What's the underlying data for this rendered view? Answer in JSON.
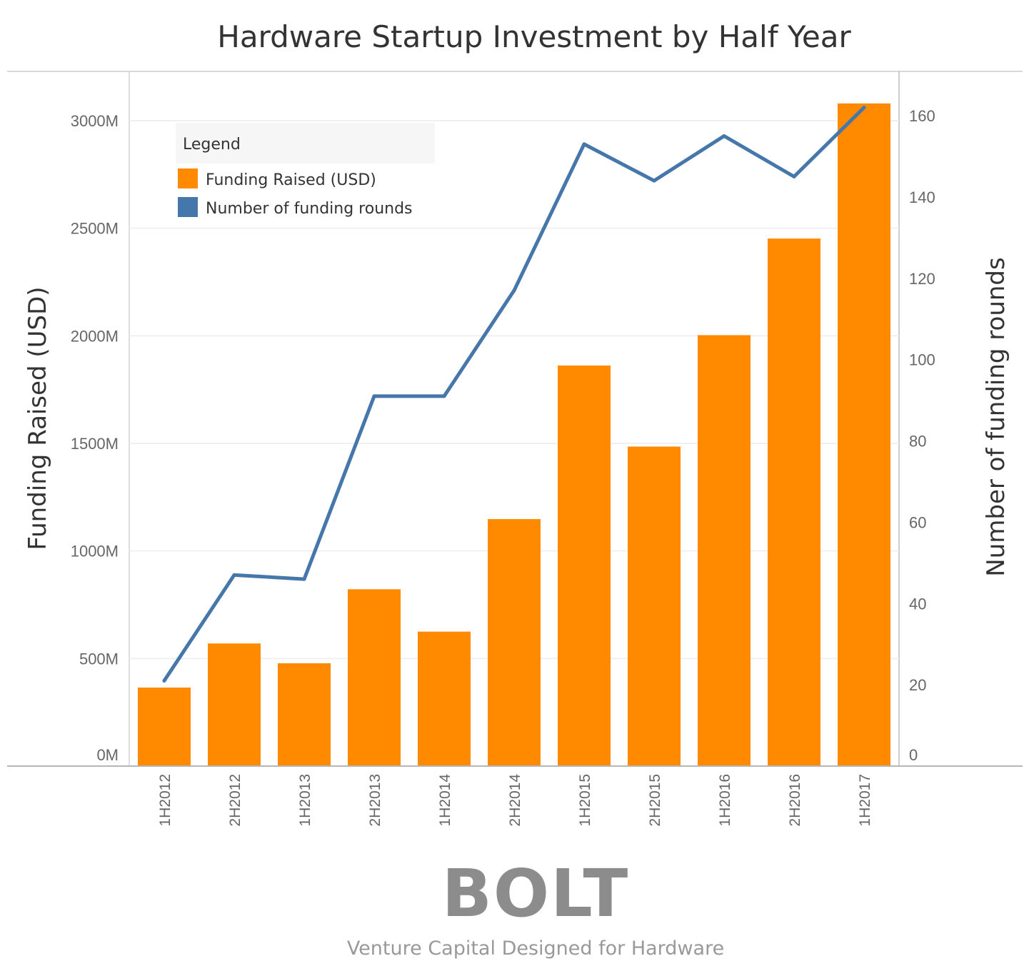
{
  "chart_data": {
    "type": "bar",
    "title": "Hardware Startup Investment by Half Year",
    "categories": [
      "1H2012",
      "2H2012",
      "1H2013",
      "2H2013",
      "1H2014",
      "2H2014",
      "1H2015",
      "2H2015",
      "1H2016",
      "2H2016",
      "1H2017"
    ],
    "series": [
      {
        "name": "Funding Raised (USD)",
        "type": "bar",
        "axis": "left",
        "values": [
          365,
          570,
          478,
          822,
          625,
          1148,
          1862,
          1485,
          2003,
          2452,
          3080
        ]
      },
      {
        "name": "Number of funding rounds",
        "type": "line",
        "axis": "right",
        "values": [
          21,
          47,
          46,
          91,
          91,
          117,
          153,
          144,
          155,
          145,
          162
        ]
      }
    ],
    "left_axis": {
      "label": "Funding Raised (USD)",
      "range": [
        0,
        3200
      ],
      "ticks": [
        0,
        500,
        1000,
        1500,
        2000,
        2500,
        3000
      ],
      "tick_labels": [
        "0M",
        "500M",
        "1000M",
        "1500M",
        "2000M",
        "2500M",
        "3000M"
      ]
    },
    "right_axis": {
      "label": "Number of funding rounds",
      "range": [
        0,
        170
      ],
      "ticks": [
        0,
        20,
        40,
        60,
        80,
        100,
        120,
        140,
        160
      ],
      "tick_labels": [
        "0",
        "20",
        "40",
        "60",
        "80",
        "100",
        "120",
        "140",
        "160"
      ]
    },
    "legend": {
      "title": "Legend",
      "position": "top-left",
      "items": [
        {
          "label": "Funding Raised (USD)",
          "color": "#FF8A00"
        },
        {
          "label": "Number of funding rounds",
          "color": "#4577AA"
        }
      ]
    },
    "grid": true,
    "colors": {
      "bar": "#FF8A00",
      "line": "#4577AA"
    }
  },
  "branding": {
    "logo": "BOLT",
    "tagline": "Venture Capital Designed for Hardware"
  }
}
